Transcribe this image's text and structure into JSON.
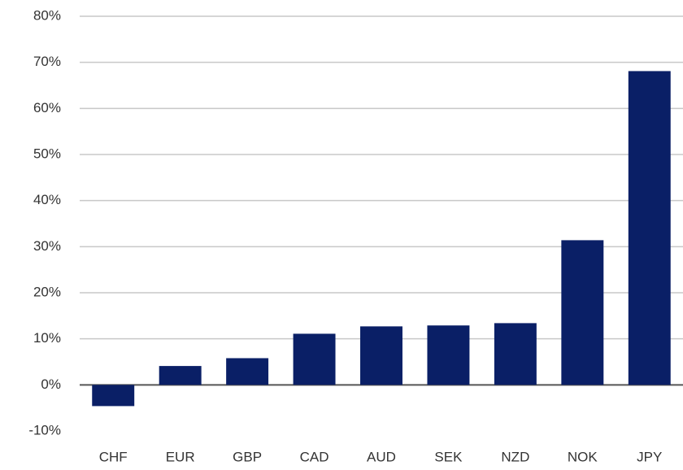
{
  "chart_data": {
    "type": "bar",
    "categories": [
      "CHF",
      "EUR",
      "GBP",
      "CAD",
      "AUD",
      "SEK",
      "NZD",
      "NOK",
      "JPY"
    ],
    "values": [
      -4.6,
      4.1,
      5.8,
      11.1,
      12.7,
      12.9,
      13.4,
      31.4,
      68.1
    ],
    "color": "#0a1f66",
    "ylim": [
      -10,
      80
    ],
    "yticks": [
      {
        "value": -10,
        "label": "-10%"
      },
      {
        "value": 0,
        "label": "0%"
      },
      {
        "value": 10,
        "label": "10%"
      },
      {
        "value": 20,
        "label": "20%"
      },
      {
        "value": 30,
        "label": "30%"
      },
      {
        "value": 40,
        "label": "40%"
      },
      {
        "value": 50,
        "label": "50%"
      },
      {
        "value": 60,
        "label": "60%"
      },
      {
        "value": 70,
        "label": "70%"
      },
      {
        "value": 80,
        "label": "80%"
      }
    ],
    "grid": true
  }
}
